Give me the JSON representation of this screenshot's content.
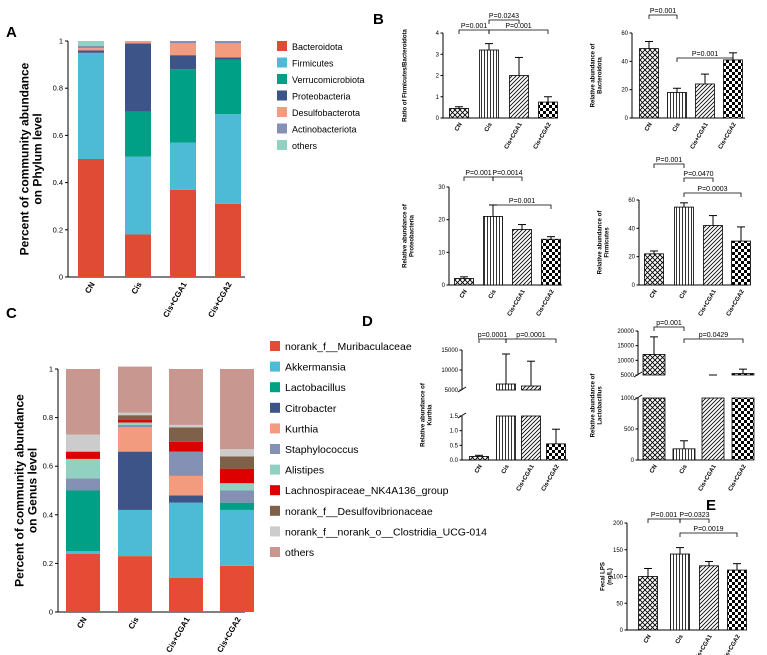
{
  "chart_data": [
    {
      "id": "A",
      "panel_label": "A",
      "type": "bar",
      "stacked": true,
      "title": "",
      "xlabel": "",
      "ylabel": "Percent of community abundance on Phylum level",
      "ylim": [
        0,
        1
      ],
      "yticks": [
        "0",
        "0.2",
        "0.4",
        "0.6",
        "0.8",
        "1"
      ],
      "categories": [
        "CN",
        "Cis",
        "Cis+CGA1",
        "Cis+CGA2"
      ],
      "series": [
        {
          "name": "Bacteroidota",
          "color": "#e04b35",
          "values": [
            0.5,
            0.18,
            0.37,
            0.31
          ]
        },
        {
          "name": "Firmicutes",
          "color": "#4dbbd5",
          "values": [
            0.45,
            0.33,
            0.2,
            0.38
          ]
        },
        {
          "name": "Verrucomicrobiota",
          "color": "#00a087",
          "values": [
            0.0,
            0.19,
            0.31,
            0.23
          ]
        },
        {
          "name": "Proteobacteria",
          "color": "#3c5488",
          "values": [
            0.01,
            0.29,
            0.06,
            0.01
          ]
        },
        {
          "name": "Desulfobacterota",
          "color": "#f39b7f",
          "values": [
            0.01,
            0.01,
            0.05,
            0.06
          ]
        },
        {
          "name": "Actinobacteriota",
          "color": "#8491b4",
          "values": [
            0.01,
            0.0,
            0.01,
            0.01
          ]
        },
        {
          "name": "others",
          "color": "#91d1c2",
          "values": [
            0.02,
            0.0,
            0.0,
            0.0
          ]
        }
      ]
    },
    {
      "id": "C",
      "panel_label": "C",
      "type": "bar",
      "stacked": true,
      "title": "",
      "xlabel": "",
      "ylabel": "Percent of community abundance on Genus level",
      "ylim": [
        0,
        1
      ],
      "yticks": [
        "0",
        "0.2",
        "0.4",
        "0.6",
        "0.8",
        "1"
      ],
      "categories": [
        "CN",
        "Cis",
        "Cis+CGA1",
        "Cis+CGA2"
      ],
      "series": [
        {
          "name": "norank_f__Muribaculaceae",
          "color": "#e64b35",
          "values": [
            0.24,
            0.23,
            0.14,
            0.19
          ]
        },
        {
          "name": "Akkermansia",
          "color": "#4dbbd5",
          "values": [
            0.01,
            0.19,
            0.31,
            0.23
          ]
        },
        {
          "name": "Lactobacillus",
          "color": "#00a087",
          "values": [
            0.25,
            0.0,
            0.0,
            0.03
          ]
        },
        {
          "name": "Citrobacter",
          "color": "#3c5488",
          "values": [
            0.0,
            0.24,
            0.03,
            0.0
          ]
        },
        {
          "name": "Kurthia",
          "color": "#f39b7f",
          "values": [
            0.0,
            0.1,
            0.08,
            0.0
          ]
        },
        {
          "name": "Staphylococcus",
          "color": "#8491b4",
          "values": [
            0.05,
            0.01,
            0.1,
            0.05
          ]
        },
        {
          "name": "Alistipes",
          "color": "#91d1c2",
          "values": [
            0.08,
            0.01,
            0.0,
            0.03
          ]
        },
        {
          "name": "Lachnospiraceae_NK4A136_group",
          "color": "#dc0000",
          "values": [
            0.03,
            0.01,
            0.04,
            0.06
          ]
        },
        {
          "name": "norank_f__Desulfovibrionaceae",
          "color": "#7e6148",
          "values": [
            0.0,
            0.02,
            0.06,
            0.05
          ]
        },
        {
          "name": "norank_f__norank_o__Clostridia_UCG-014",
          "color": "#cccccc",
          "values": [
            0.07,
            0.01,
            0.01,
            0.03
          ]
        },
        {
          "name": "others",
          "color": "#c8978f",
          "values": [
            0.27,
            0.19,
            0.23,
            0.33
          ]
        }
      ]
    },
    {
      "id": "B1",
      "panel_label": "B",
      "type": "bar",
      "ylabel": "Ratio of Firmicutes/Bacteroidota",
      "ylim": [
        0,
        4
      ],
      "yticks": [
        "0",
        "1",
        "2",
        "3",
        "4"
      ],
      "categories": [
        "CN",
        "Cis",
        "Cis+CGA1",
        "Cis+CGA2"
      ],
      "values": [
        0.45,
        3.2,
        2.0,
        0.75
      ],
      "errors": [
        0.08,
        0.3,
        0.85,
        0.25
      ],
      "comparisons": [
        {
          "from": 0,
          "to": 1,
          "label": "P=0.001",
          "level": 1
        },
        {
          "from": 1,
          "to": 2,
          "label": "P=0.0243",
          "level": 2
        },
        {
          "from": 1,
          "to": 3,
          "label": "P=0.001",
          "level": 1
        }
      ]
    },
    {
      "id": "B2",
      "panel_label": "",
      "type": "bar",
      "ylabel": "Relative abundance of Bacteroidota",
      "ylim": [
        0,
        60
      ],
      "yticks": [
        "0",
        "20",
        "40",
        "60"
      ],
      "categories": [
        "CN",
        "Cis",
        "Cis+CGA1",
        "Cis+CGA2"
      ],
      "values": [
        49,
        18,
        24,
        41
      ],
      "errors": [
        5,
        3,
        7,
        5
      ],
      "comparisons": [
        {
          "from": 0,
          "to": 1,
          "label": "P=0.001",
          "level": 2
        },
        {
          "from": 1,
          "to": 3,
          "label": "P=0.001",
          "level": 1
        }
      ]
    },
    {
      "id": "B3",
      "panel_label": "",
      "type": "bar",
      "ylabel": "Relative abundance of Proteobacteria",
      "ylim": [
        0,
        30
      ],
      "yticks": [
        "0",
        "10",
        "20",
        "30"
      ],
      "categories": [
        "CN",
        "Cis",
        "Cis+CGA1",
        "Cis+CGA2"
      ],
      "values": [
        2,
        21,
        17,
        14
      ],
      "errors": [
        0.5,
        3.5,
        1.5,
        0.8
      ],
      "comparisons": [
        {
          "from": 0,
          "to": 1,
          "label": "P=0.001",
          "level": 2
        },
        {
          "from": 1,
          "to": 2,
          "label": "P=0.0014",
          "level": 2
        },
        {
          "from": 1,
          "to": 3,
          "label": "P=0.001",
          "level": 1
        }
      ]
    },
    {
      "id": "B4",
      "panel_label": "",
      "type": "bar",
      "ylabel": "Relative abundance of Firmicutes",
      "ylim": [
        0,
        60
      ],
      "yticks": [
        "0",
        "20",
        "40",
        "60"
      ],
      "categories": [
        "CN",
        "Cis",
        "Cis+CGA1",
        "Cis+CGA2"
      ],
      "values": [
        22,
        55,
        42,
        31
      ],
      "errors": [
        2,
        3,
        7,
        10
      ],
      "comparisons": [
        {
          "from": 0,
          "to": 1,
          "label": "P=0.001",
          "level": 3
        },
        {
          "from": 1,
          "to": 2,
          "label": "P=0.0470",
          "level": 2
        },
        {
          "from": 1,
          "to": 3,
          "label": "P=0.0003",
          "level": 1
        }
      ]
    },
    {
      "id": "D1",
      "panel_label": "D",
      "type": "bar",
      "axis_break": true,
      "ylabel": "Relative abundance of Kurthia",
      "ylim": [
        0,
        15000
      ],
      "yticks": [
        "0.0",
        "0.5",
        "1.0",
        "1.5",
        "5000",
        "10000",
        "15000"
      ],
      "categories": [
        "CN",
        "Cis",
        "Cis+CGA1",
        "Cis+CGA2"
      ],
      "values": [
        0.12,
        6500,
        6000,
        0.55
      ],
      "errors": [
        0.04,
        7500,
        6200,
        0.5
      ],
      "comparisons": [
        {
          "from": 0,
          "to": 1,
          "label": "p=0.0001",
          "level": 1
        },
        {
          "from": 1,
          "to": 3,
          "label": "p=0.0001",
          "level": 1
        }
      ]
    },
    {
      "id": "D2",
      "panel_label": "",
      "type": "bar",
      "axis_break": true,
      "ylabel": "Relative abundance of Lactobacillus",
      "ylim": [
        0,
        20000
      ],
      "yticks": [
        "0",
        "500",
        "1000",
        "5000",
        "10000",
        "15000",
        "20000"
      ],
      "categories": [
        "CN",
        "Cis",
        "Cis+CGA1",
        "Cis+CGA2"
      ],
      "values": [
        12000,
        180,
        2500,
        5500
      ],
      "errors": [
        6000,
        130,
        1200,
        1500
      ],
      "comparisons": [
        {
          "from": 0,
          "to": 1,
          "label": "p=0.001",
          "level": 2
        },
        {
          "from": 1,
          "to": 3,
          "label": "p=0.0429",
          "level": 1
        }
      ]
    },
    {
      "id": "E",
      "panel_label": "E",
      "type": "bar",
      "ylabel": "Fecal LPS (ng/L)",
      "ylim": [
        0,
        200
      ],
      "yticks": [
        "0",
        "50",
        "100",
        "150",
        "200"
      ],
      "categories": [
        "CN",
        "Cis",
        "Cis+CGA1",
        "Cis+CGA2"
      ],
      "values": [
        100,
        142,
        120,
        112
      ],
      "errors": [
        15,
        12,
        8,
        12
      ],
      "comparisons": [
        {
          "from": 0,
          "to": 1,
          "label": "P=0.001",
          "level": 2
        },
        {
          "from": 1,
          "to": 2,
          "label": "P=0.0323",
          "level": 2
        },
        {
          "from": 1,
          "to": 3,
          "label": "P=0.0019",
          "level": 1
        }
      ]
    }
  ]
}
